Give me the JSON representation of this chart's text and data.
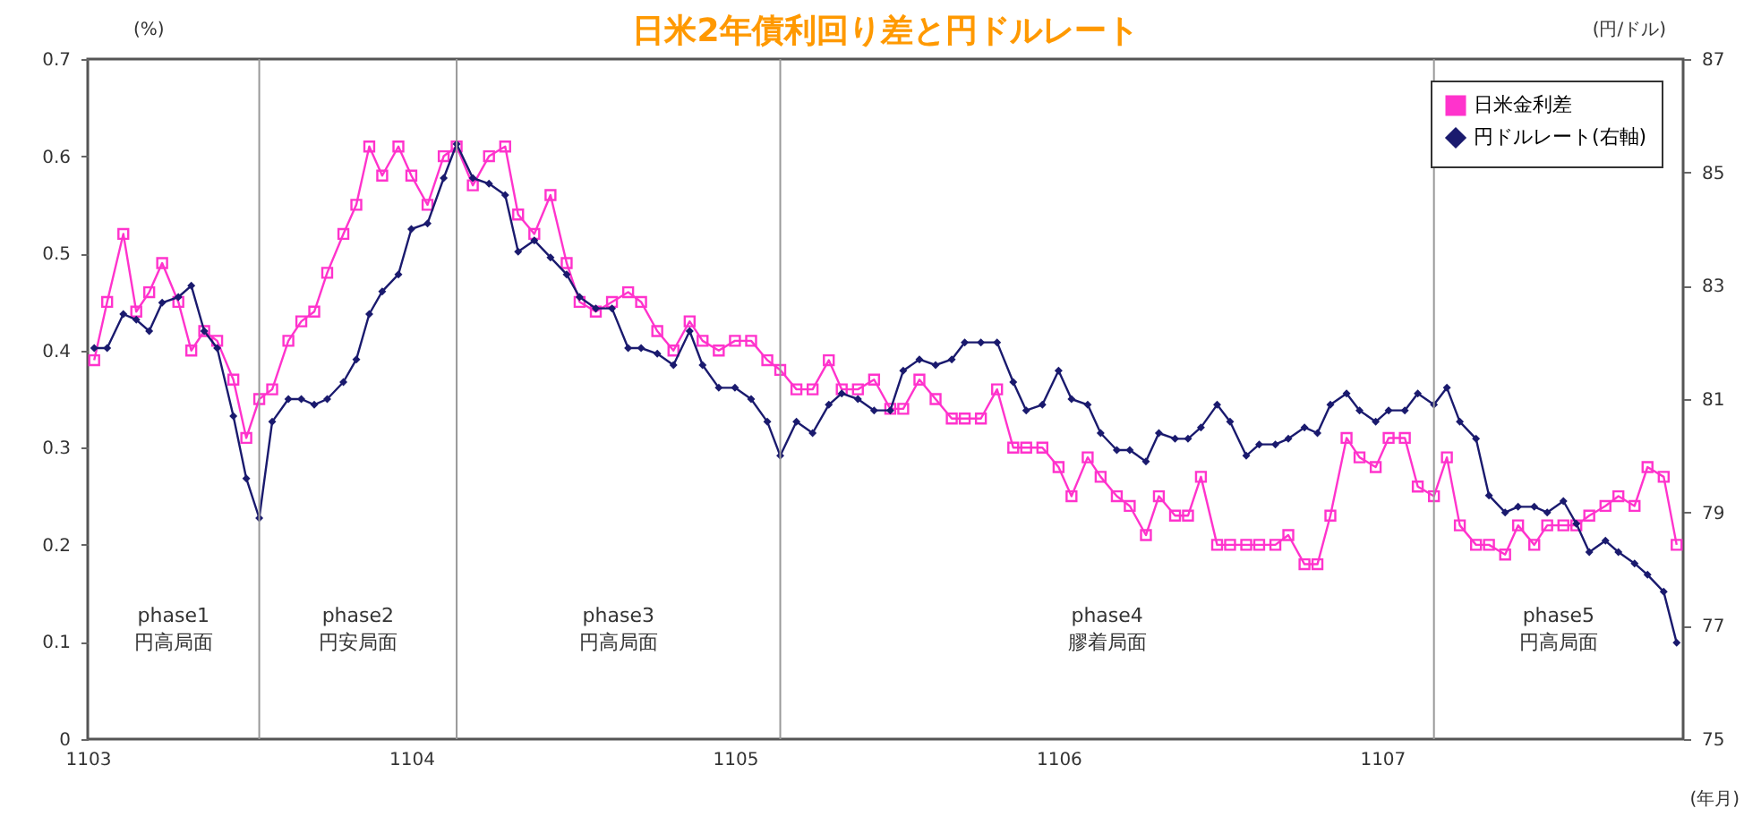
{
  "chart_data": {
    "type": "line",
    "title": "日米2年債利回り差と円ドルレート",
    "ylabel": "(%)",
    "y2label": "(円/ドル)",
    "xlabel": "(年月)",
    "x": [
      1103.02,
      1103.06,
      1103.11,
      1103.15,
      1103.19,
      1103.23,
      1103.28,
      1103.32,
      1103.36,
      1103.4,
      1103.45,
      1103.49,
      1103.53,
      1103.57,
      1103.62,
      1103.66,
      1103.7,
      1103.74,
      1103.79,
      1103.83,
      1103.87,
      1103.91,
      1103.96,
      1104.0,
      1104.05,
      1104.1,
      1104.14,
      1104.19,
      1104.24,
      1104.29,
      1104.33,
      1104.38,
      1104.43,
      1104.48,
      1104.52,
      1104.57,
      1104.62,
      1104.67,
      1104.71,
      1104.76,
      1104.81,
      1104.86,
      1104.9,
      1104.95,
      1105.0,
      1105.05,
      1105.1,
      1105.14,
      1105.19,
      1105.24,
      1105.29,
      1105.33,
      1105.38,
      1105.43,
      1105.48,
      1105.52,
      1105.57,
      1105.62,
      1105.67,
      1105.71,
      1105.76,
      1105.81,
      1105.86,
      1105.9,
      1105.95,
      1106.0,
      1106.04,
      1106.09,
      1106.13,
      1106.18,
      1106.22,
      1106.27,
      1106.31,
      1106.36,
      1106.4,
      1106.44,
      1106.49,
      1106.53,
      1106.58,
      1106.62,
      1106.67,
      1106.71,
      1106.76,
      1106.8,
      1106.84,
      1106.89,
      1106.93,
      1106.98,
      1107.02,
      1107.07,
      1107.11,
      1107.16,
      1107.2,
      1107.24,
      1107.29,
      1107.33,
      1107.38,
      1107.42,
      1107.47,
      1107.51,
      1107.56,
      1107.6,
      1107.64,
      1107.69,
      1107.73,
      1107.78,
      1107.82,
      1107.87,
      1107.91
    ],
    "xlim": [
      1103,
      1107.93
    ],
    "xticks": [
      1103,
      1104,
      1105,
      1106,
      1107
    ],
    "ylim": [
      0,
      0.7
    ],
    "yticks": [
      0,
      0.1,
      0.2,
      0.3,
      0.4,
      0.5,
      0.6,
      0.7
    ],
    "y2lim": [
      75,
      87
    ],
    "y2ticks": [
      75,
      77,
      79,
      81,
      83,
      85,
      87
    ],
    "legend": "top right",
    "series": [
      {
        "name": "日米金利差",
        "color": "#ff33cc",
        "marker": "square",
        "values": [
          0.39,
          0.45,
          0.52,
          0.44,
          0.46,
          0.49,
          0.45,
          0.4,
          0.42,
          0.41,
          0.37,
          0.31,
          0.35,
          0.36,
          0.41,
          0.43,
          0.44,
          0.48,
          0.52,
          0.55,
          0.61,
          0.58,
          0.61,
          0.58,
          0.55,
          0.6,
          0.61,
          0.57,
          0.6,
          0.61,
          0.54,
          0.52,
          0.56,
          0.49,
          0.45,
          0.44,
          0.45,
          0.46,
          0.45,
          0.42,
          0.4,
          0.43,
          0.41,
          0.4,
          0.41,
          0.41,
          0.39,
          0.38,
          0.36,
          0.36,
          0.39,
          0.36,
          0.36,
          0.37,
          0.34,
          0.34,
          0.37,
          0.35,
          0.33,
          0.33,
          0.33,
          0.36,
          0.3,
          0.3,
          0.3,
          0.28,
          0.25,
          0.29,
          0.27,
          0.25,
          0.24,
          0.21,
          0.25,
          0.23,
          0.23,
          0.27,
          0.2,
          0.2,
          0.2,
          0.2,
          0.2,
          0.21,
          0.18,
          0.18,
          0.23,
          0.31,
          0.29,
          0.28,
          0.31,
          0.31,
          0.26,
          0.25,
          0.29,
          0.22,
          0.2,
          0.2,
          0.19,
          0.22,
          0.2,
          0.22,
          0.22,
          0.22,
          0.23,
          0.24,
          0.25,
          0.24,
          0.28,
          0.27,
          0.2
        ]
      },
      {
        "name": "円ドルレート(右軸)",
        "color": "#1a1a6e",
        "marker": "diamond",
        "axis": "y2",
        "values": [
          81.9,
          81.9,
          82.5,
          82.4,
          82.2,
          82.7,
          82.8,
          83.0,
          82.2,
          81.9,
          80.7,
          79.6,
          78.9,
          80.6,
          81.0,
          81.0,
          80.9,
          81.0,
          81.3,
          81.7,
          82.5,
          82.9,
          83.2,
          84.0,
          84.1,
          84.9,
          85.5,
          84.9,
          84.8,
          84.6,
          83.6,
          83.8,
          83.5,
          83.2,
          82.8,
          82.6,
          82.6,
          81.9,
          81.9,
          81.8,
          81.6,
          82.2,
          81.6,
          81.2,
          81.2,
          81.0,
          80.6,
          80.0,
          80.6,
          80.4,
          80.9,
          81.1,
          81.0,
          80.8,
          80.8,
          81.5,
          81.7,
          81.6,
          81.7,
          82.0,
          82.0,
          82.0,
          81.3,
          80.8,
          80.9,
          81.5,
          81.0,
          80.9,
          80.4,
          80.1,
          80.1,
          79.9,
          80.4,
          80.3,
          80.3,
          80.5,
          80.9,
          80.6,
          80.0,
          80.2,
          80.2,
          80.3,
          80.5,
          80.4,
          80.9,
          81.1,
          80.8,
          80.6,
          80.8,
          80.8,
          81.1,
          80.9,
          81.2,
          80.6,
          80.3,
          79.3,
          79.0,
          79.1,
          79.1,
          79.0,
          79.2,
          78.8,
          78.3,
          78.5,
          78.3,
          78.1,
          77.9,
          77.6,
          76.7
        ]
      }
    ],
    "ref_lines": [
      {
        "axis": "x",
        "value": 1103.53,
        "color": "#999999"
      },
      {
        "axis": "x",
        "value": 1104.14,
        "color": "#999999"
      },
      {
        "axis": "x",
        "value": 1105.14,
        "color": "#999999"
      },
      {
        "axis": "x",
        "value": 1107.16,
        "color": "#999999"
      }
    ],
    "annotations": [
      "phase1\n円高局面",
      "phase2\n円安局面",
      "phase3\n円高局面",
      "phase4\n膠着局面",
      "phase5\n円高局面"
    ]
  }
}
